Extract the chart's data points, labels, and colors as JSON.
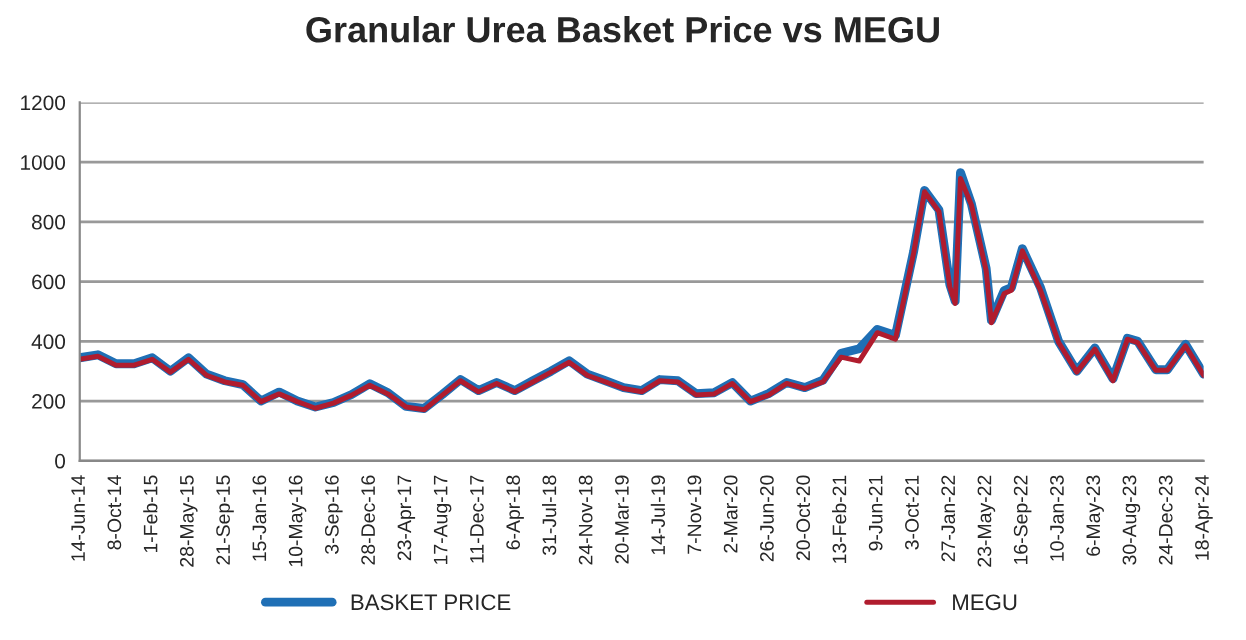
{
  "chart_data": {
    "type": "line",
    "title": "Granular Urea Basket Price vs MEGU",
    "x": [
      "2014-06-14",
      "2014-08-11",
      "2014-10-08",
      "2014-12-05",
      "2015-02-01",
      "2015-03-31",
      "2015-05-28",
      "2015-07-25",
      "2015-09-21",
      "2015-11-18",
      "2016-01-15",
      "2016-03-13",
      "2016-05-10",
      "2016-07-07",
      "2016-09-03",
      "2016-10-31",
      "2016-12-28",
      "2017-02-24",
      "2017-04-23",
      "2017-06-20",
      "2017-08-17",
      "2017-10-14",
      "2017-12-11",
      "2018-02-07",
      "2018-04-06",
      "2018-06-03",
      "2018-07-31",
      "2018-09-27",
      "2018-11-24",
      "2019-01-21",
      "2019-03-20",
      "2019-05-17",
      "2019-07-14",
      "2019-09-10",
      "2019-11-07",
      "2020-01-04",
      "2020-03-02",
      "2020-04-29",
      "2020-06-26",
      "2020-08-23",
      "2020-10-20",
      "2020-12-17",
      "2021-02-13",
      "2021-04-12",
      "2021-06-09",
      "2021-08-06",
      "2021-10-03",
      "2021-11-07",
      "2021-12-23",
      "2022-01-27",
      "2022-02-13",
      "2022-03-02",
      "2022-04-06",
      "2022-05-23",
      "2022-06-09",
      "2022-07-20",
      "2022-08-12",
      "2022-09-16",
      "2022-11-13",
      "2023-01-10",
      "2023-03-09",
      "2023-05-06",
      "2023-07-03",
      "2023-08-18",
      "2023-09-20",
      "2023-11-17",
      "2023-12-24",
      "2024-02-20",
      "2024-04-18"
    ],
    "series": [
      {
        "name": "BASKET PRICE",
        "color": "#1f6fb5",
        "values": [
          345,
          355,
          325,
          325,
          345,
          300,
          345,
          290,
          268,
          255,
          200,
          230,
          200,
          180,
          195,
          222,
          258,
          228,
          182,
          175,
          222,
          272,
          235,
          262,
          235,
          268,
          300,
          335,
          290,
          268,
          245,
          235,
          272,
          268,
          225,
          228,
          262,
          200,
          225,
          262,
          245,
          270,
          360,
          375,
          440,
          420,
          700,
          905,
          840,
          590,
          535,
          965,
          860,
          645,
          470,
          570,
          580,
          710,
          580,
          400,
          300,
          378,
          275,
          410,
          400,
          305,
          305,
          390,
          290
        ]
      },
      {
        "name": "MEGU",
        "color": "#b01c2e",
        "values": [
          340,
          350,
          320,
          320,
          340,
          297,
          340,
          286,
          264,
          253,
          198,
          224,
          198,
          176,
          193,
          220,
          253,
          224,
          180,
          171,
          220,
          268,
          231,
          259,
          231,
          264,
          297,
          330,
          286,
          264,
          242,
          231,
          268,
          264,
          220,
          224,
          259,
          198,
          220,
          259,
          242,
          264,
          347,
          334,
          429,
          407,
          695,
          901,
          835,
          582,
          527,
          945,
          857,
          637,
          462,
          560,
          571,
          703,
          571,
          396,
          297,
          374,
          268,
          407,
          396,
          303,
          303,
          385,
          286
        ]
      }
    ],
    "xlim": [
      "2014-06-14",
      "2024-04-18"
    ],
    "xticks": [
      {
        "value": "2014-06-14",
        "label": "14-Jun-14"
      },
      {
        "value": "2014-10-08",
        "label": "8-Oct-14"
      },
      {
        "value": "2015-02-01",
        "label": "1-Feb-15"
      },
      {
        "value": "2015-05-28",
        "label": "28-May-15"
      },
      {
        "value": "2015-09-21",
        "label": "21-Sep-15"
      },
      {
        "value": "2016-01-15",
        "label": "15-Jan-16"
      },
      {
        "value": "2016-05-10",
        "label": "10-May-16"
      },
      {
        "value": "2016-09-03",
        "label": "3-Sep-16"
      },
      {
        "value": "2016-12-28",
        "label": "28-Dec-16"
      },
      {
        "value": "2017-04-23",
        "label": "23-Apr-17"
      },
      {
        "value": "2017-08-17",
        "label": "17-Aug-17"
      },
      {
        "value": "2017-12-11",
        "label": "11-Dec-17"
      },
      {
        "value": "2018-04-06",
        "label": "6-Apr-18"
      },
      {
        "value": "2018-07-31",
        "label": "31-Jul-18"
      },
      {
        "value": "2018-11-24",
        "label": "24-Nov-18"
      },
      {
        "value": "2019-03-20",
        "label": "20-Mar-19"
      },
      {
        "value": "2019-07-14",
        "label": "14-Jul-19"
      },
      {
        "value": "2019-11-07",
        "label": "7-Nov-19"
      },
      {
        "value": "2020-03-02",
        "label": "2-Mar-20"
      },
      {
        "value": "2020-06-26",
        "label": "26-Jun-20"
      },
      {
        "value": "2020-10-20",
        "label": "20-Oct-20"
      },
      {
        "value": "2021-02-13",
        "label": "13-Feb-21"
      },
      {
        "value": "2021-06-09",
        "label": "9-Jun-21"
      },
      {
        "value": "2021-10-03",
        "label": "3-Oct-21"
      },
      {
        "value": "2022-01-27",
        "label": "27-Jan-22"
      },
      {
        "value": "2022-05-23",
        "label": "23-May-22"
      },
      {
        "value": "2022-09-16",
        "label": "16-Sep-22"
      },
      {
        "value": "2023-01-10",
        "label": "10-Jan-23"
      },
      {
        "value": "2023-05-06",
        "label": "6-May-23"
      },
      {
        "value": "2023-08-30",
        "label": "30-Aug-23"
      },
      {
        "value": "2023-12-24",
        "label": "24-Dec-23"
      },
      {
        "value": "2024-04-18",
        "label": "18-Apr-24"
      }
    ],
    "ylim": [
      0,
      1200
    ],
    "yticks": [
      0,
      200,
      400,
      600,
      800,
      1000,
      1200
    ],
    "grid": "y",
    "legend": "bottom",
    "marker": "none",
    "line_style": "solid"
  }
}
